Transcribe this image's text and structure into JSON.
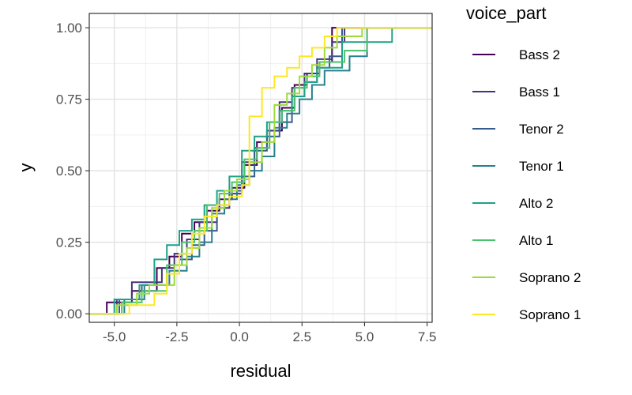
{
  "chart_data": {
    "type": "line",
    "step": true,
    "xlabel": "residual",
    "ylabel": "y",
    "xlim": [
      -6.0,
      7.7
    ],
    "ylim": [
      -0.03,
      1.05
    ],
    "x_ticks": [
      -5.0,
      -2.5,
      0.0,
      2.5,
      5.0,
      7.5
    ],
    "x_tick_labels": [
      "-5.0",
      "-2.5",
      "0.0",
      "2.5",
      "5.0",
      "7.5"
    ],
    "y_ticks": [
      0.0,
      0.25,
      0.5,
      0.75,
      1.0
    ],
    "y_tick_labels": [
      "0.00",
      "0.25",
      "0.50",
      "0.75",
      "1.00"
    ],
    "grid": true,
    "legend": {
      "title": "voice_part",
      "position": "right"
    },
    "series": [
      {
        "name": "Bass 2",
        "color": "#440154",
        "x": [
          -6.0,
          -5.3,
          -4.3,
          -3.3,
          -2.8,
          -2.3,
          -1.8,
          -1.3,
          -0.8,
          -0.3,
          0.2,
          0.7,
          1.2,
          1.7,
          2.2,
          2.7,
          3.2,
          3.7,
          7.7
        ],
        "y": [
          0.0,
          0.04,
          0.08,
          0.16,
          0.2,
          0.28,
          0.32,
          0.36,
          0.4,
          0.44,
          0.52,
          0.6,
          0.64,
          0.72,
          0.8,
          0.84,
          0.88,
          1.0,
          1.0
        ]
      },
      {
        "name": "Bass 1",
        "color": "#46337E",
        "x": [
          -6.0,
          -4.9,
          -4.3,
          -3.1,
          -2.6,
          -2.1,
          -1.6,
          -0.9,
          -0.4,
          0.1,
          0.6,
          1.1,
          1.6,
          2.1,
          2.6,
          3.1,
          3.7,
          4.2,
          7.7
        ],
        "y": [
          0.0,
          0.05,
          0.11,
          0.16,
          0.21,
          0.26,
          0.32,
          0.37,
          0.42,
          0.53,
          0.58,
          0.64,
          0.74,
          0.79,
          0.84,
          0.89,
          0.95,
          1.0,
          1.0
        ]
      },
      {
        "name": "Tenor 2",
        "color": "#365C8D",
        "x": [
          -6.0,
          -4.8,
          -3.9,
          -2.9,
          -2.4,
          -1.9,
          -1.4,
          -0.9,
          -0.4,
          0.1,
          0.6,
          1.1,
          1.6,
          2.1,
          2.6,
          3.1,
          3.6,
          4.1,
          7.7
        ],
        "y": [
          0.0,
          0.05,
          0.1,
          0.14,
          0.19,
          0.24,
          0.29,
          0.38,
          0.43,
          0.48,
          0.57,
          0.62,
          0.67,
          0.76,
          0.81,
          0.86,
          0.9,
          1.0,
          1.0
        ]
      },
      {
        "name": "Tenor 1",
        "color": "#277F8E",
        "x": [
          -6.0,
          -4.6,
          -3.8,
          -2.8,
          -2.1,
          -1.6,
          -1.1,
          -0.6,
          -0.1,
          0.4,
          0.9,
          1.4,
          1.9,
          2.4,
          2.9,
          3.4,
          4.4,
          5.1,
          7.7
        ],
        "y": [
          0.0,
          0.05,
          0.1,
          0.15,
          0.2,
          0.25,
          0.35,
          0.4,
          0.45,
          0.5,
          0.55,
          0.65,
          0.7,
          0.75,
          0.8,
          0.85,
          0.9,
          1.0,
          1.0
        ]
      },
      {
        "name": "Alto 2",
        "color": "#1FA187",
        "x": [
          -6.0,
          -5.0,
          -4.0,
          -3.4,
          -2.9,
          -2.4,
          -1.9,
          -1.4,
          -0.9,
          -0.4,
          0.1,
          0.6,
          1.1,
          1.6,
          2.1,
          2.6,
          3.1,
          4.1,
          6.1,
          7.7
        ],
        "y": [
          0.0,
          0.05,
          0.1,
          0.19,
          0.24,
          0.29,
          0.33,
          0.38,
          0.43,
          0.48,
          0.57,
          0.62,
          0.67,
          0.71,
          0.76,
          0.81,
          0.86,
          0.95,
          1.0,
          1.0
        ]
      },
      {
        "name": "Alto 1",
        "color": "#4AC16D",
        "x": [
          -6.0,
          -4.7,
          -3.9,
          -2.9,
          -2.3,
          -1.8,
          -1.3,
          -0.8,
          -0.3,
          0.2,
          0.7,
          1.2,
          1.7,
          2.2,
          2.7,
          3.2,
          4.2,
          5.1,
          7.7
        ],
        "y": [
          0.0,
          0.04,
          0.08,
          0.17,
          0.25,
          0.29,
          0.38,
          0.42,
          0.46,
          0.54,
          0.58,
          0.67,
          0.71,
          0.79,
          0.83,
          0.88,
          0.92,
          1.0,
          1.0
        ]
      },
      {
        "name": "Soprano 2",
        "color": "#9FDA3A",
        "x": [
          -6.0,
          -4.9,
          -4.1,
          -3.6,
          -2.6,
          -2.1,
          -1.6,
          -1.1,
          -0.6,
          -0.1,
          0.4,
          0.9,
          1.4,
          1.9,
          2.4,
          2.9,
          3.4,
          3.9,
          4.9,
          7.7
        ],
        "y": [
          0.0,
          0.03,
          0.07,
          0.1,
          0.17,
          0.23,
          0.3,
          0.37,
          0.43,
          0.47,
          0.53,
          0.6,
          0.73,
          0.77,
          0.83,
          0.87,
          0.93,
          0.97,
          1.0,
          1.0
        ]
      },
      {
        "name": "Soprano 1",
        "color": "#FDE725",
        "x": [
          -6.0,
          -4.4,
          -3.4,
          -2.9,
          -2.4,
          -1.9,
          -1.4,
          -0.9,
          -0.4,
          0.1,
          0.4,
          0.9,
          1.4,
          1.9,
          2.4,
          2.9,
          3.4,
          3.9,
          7.7
        ],
        "y": [
          0.0,
          0.03,
          0.07,
          0.14,
          0.21,
          0.28,
          0.34,
          0.38,
          0.41,
          0.45,
          0.69,
          0.79,
          0.83,
          0.86,
          0.9,
          0.93,
          0.97,
          1.0,
          1.0
        ]
      }
    ]
  }
}
